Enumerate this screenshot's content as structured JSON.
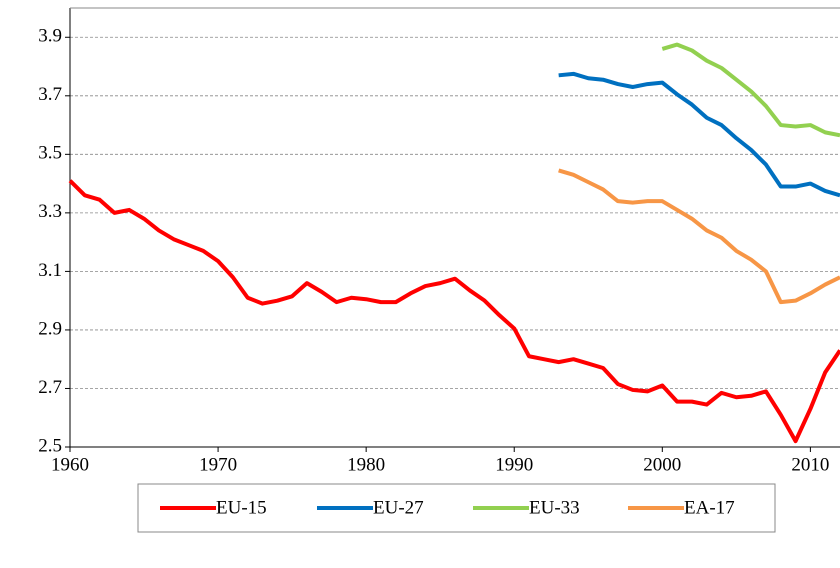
{
  "chart_data": {
    "type": "line",
    "x": [
      1960,
      1961,
      1962,
      1963,
      1964,
      1965,
      1966,
      1967,
      1968,
      1969,
      1970,
      1971,
      1972,
      1973,
      1974,
      1975,
      1976,
      1977,
      1978,
      1979,
      1980,
      1981,
      1982,
      1983,
      1984,
      1985,
      1986,
      1987,
      1988,
      1989,
      1990,
      1991,
      1992,
      1993,
      1994,
      1995,
      1996,
      1997,
      1998,
      1999,
      2000,
      2001,
      2002,
      2003,
      2004,
      2005,
      2006,
      2007,
      2008,
      2009,
      2010,
      2011,
      2012
    ],
    "series": [
      {
        "name": "EU-15",
        "color": "#ff0000",
        "values": [
          3.41,
          3.36,
          3.345,
          3.3,
          3.31,
          3.28,
          3.24,
          3.21,
          3.19,
          3.17,
          3.135,
          3.08,
          3.01,
          2.99,
          3.0,
          3.015,
          3.06,
          3.03,
          2.995,
          3.01,
          3.005,
          2.995,
          2.995,
          3.025,
          3.05,
          3.06,
          3.075,
          3.035,
          3.0,
          2.95,
          2.905,
          2.81,
          2.8,
          2.79,
          2.8,
          2.785,
          2.77,
          2.715,
          2.695,
          2.69,
          2.71,
          2.655,
          2.655,
          2.645,
          2.685,
          2.67,
          2.675,
          2.69,
          2.61,
          2.52,
          2.63,
          2.755,
          2.83
        ]
      },
      {
        "name": "EU-27",
        "color": "#0070c0",
        "values": [
          null,
          null,
          null,
          null,
          null,
          null,
          null,
          null,
          null,
          null,
          null,
          null,
          null,
          null,
          null,
          null,
          null,
          null,
          null,
          null,
          null,
          null,
          null,
          null,
          null,
          null,
          null,
          null,
          null,
          null,
          null,
          null,
          null,
          3.77,
          3.775,
          3.76,
          3.755,
          3.74,
          3.73,
          3.74,
          3.745,
          3.705,
          3.67,
          3.625,
          3.6,
          3.555,
          3.515,
          3.465,
          3.39,
          3.39,
          3.4,
          3.375,
          3.36
        ]
      },
      {
        "name": "EU-33",
        "color": "#92d050",
        "values": [
          null,
          null,
          null,
          null,
          null,
          null,
          null,
          null,
          null,
          null,
          null,
          null,
          null,
          null,
          null,
          null,
          null,
          null,
          null,
          null,
          null,
          null,
          null,
          null,
          null,
          null,
          null,
          null,
          null,
          null,
          null,
          null,
          null,
          null,
          null,
          null,
          null,
          null,
          null,
          null,
          3.86,
          3.875,
          3.855,
          3.82,
          3.795,
          3.755,
          3.715,
          3.665,
          3.6,
          3.595,
          3.6,
          3.575,
          3.565
        ]
      },
      {
        "name": "EA-17",
        "color": "#f79646",
        "values": [
          null,
          null,
          null,
          null,
          null,
          null,
          null,
          null,
          null,
          null,
          null,
          null,
          null,
          null,
          null,
          null,
          null,
          null,
          null,
          null,
          null,
          null,
          null,
          null,
          null,
          null,
          null,
          null,
          null,
          null,
          null,
          null,
          null,
          3.445,
          3.43,
          3.405,
          3.38,
          3.34,
          3.335,
          3.34,
          3.34,
          3.31,
          3.28,
          3.24,
          3.215,
          3.17,
          3.14,
          3.1,
          2.995,
          3.0,
          3.025,
          3.055,
          3.08
        ]
      }
    ],
    "xlim": [
      1960,
      2012
    ],
    "xticks": [
      1960,
      1970,
      1980,
      1990,
      2000,
      2010
    ],
    "ylim": [
      2.5,
      4.0
    ],
    "yticks": [
      2.5,
      2.7,
      2.9,
      3.1,
      3.3,
      3.5,
      3.7,
      3.9
    ],
    "grid": true,
    "legend": "bottom"
  }
}
